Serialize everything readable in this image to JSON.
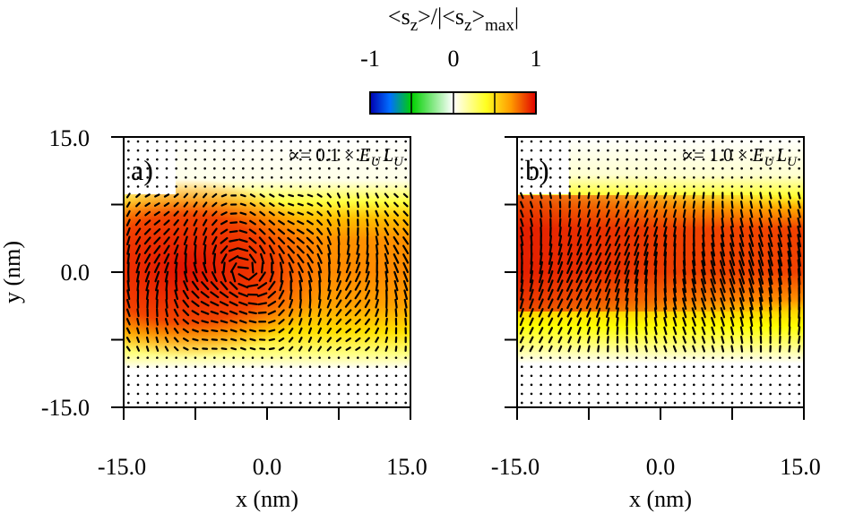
{
  "colorbar": {
    "title_main": "<s",
    "title_sub1": "z",
    "title_mid": ">/|<s",
    "title_sub2": "z",
    "title_mid2": ">",
    "title_sub3": "max",
    "title_end": "|",
    "tick_labels": [
      "-1",
      "0",
      "1"
    ],
    "range": [
      -1,
      1
    ],
    "colors": [
      "#0000c8",
      "#0090ff",
      "#00e000",
      "#ffffff",
      "#ffff00",
      "#ff9000",
      "#e00000"
    ]
  },
  "chart_data": [
    {
      "type": "heatmap",
      "panel_label": "a)",
      "alpha_text": "∝= 0.1 × ",
      "alpha_value": 0.1,
      "alpha_units": "E",
      "alpha_units_sub1": "U",
      "alpha_units2": "L",
      "alpha_units_sub2": "U",
      "xlabel": "x (nm)",
      "ylabel": "y (nm)",
      "xlim": [
        -15.0,
        15.0
      ],
      "ylim": [
        -15.0,
        15.0
      ],
      "x_tick_labels": [
        "-15.0",
        "0.0",
        "15.0"
      ],
      "y_tick_labels": [
        "15.0",
        "0.0",
        "-15.0"
      ],
      "value_field": "sz normalized, max ≈ 1 near y≈0 on left half",
      "arrows": "in-plane spin vectors forming a vortex near x≈-5 nm"
    },
    {
      "type": "heatmap",
      "panel_label": "b)",
      "alpha_text": "∝= 1.0 × ",
      "alpha_value": 1.0,
      "alpha_units": "E",
      "alpha_units_sub1": "U",
      "alpha_units2": "L",
      "alpha_units_sub2": "U",
      "xlabel": "x (nm)",
      "ylabel": "",
      "xlim": [
        -15.0,
        15.0
      ],
      "ylim": [
        -15.0,
        15.0
      ],
      "x_tick_labels": [
        "-15.0",
        "0.0",
        "15.0"
      ],
      "y_tick_labels": [],
      "value_field": "sz normalized, max ≈ 1 in band y≈0 to 7 nm",
      "arrows": "mostly vertical in-plane spin vectors"
    }
  ]
}
